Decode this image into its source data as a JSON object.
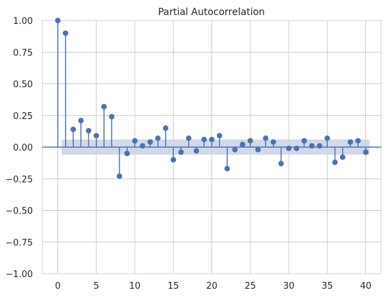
{
  "chart_data": {
    "type": "stem",
    "title": "Partial Autocorrelation",
    "xlabel": "",
    "ylabel": "",
    "xlim": [
      -2,
      42
    ],
    "ylim": [
      -1.0,
      1.0
    ],
    "x_ticks": [
      0,
      5,
      10,
      15,
      20,
      25,
      30,
      35,
      40
    ],
    "y_ticks": [
      1.0,
      0.75,
      0.5,
      0.25,
      0.0,
      -0.25,
      -0.5,
      -0.75,
      -1.0
    ],
    "y_tick_labels": [
      "1.00",
      "0.75",
      "0.50",
      "0.25",
      "0.00",
      "−0.25",
      "−0.50",
      "−0.75",
      "−1.00"
    ],
    "grid": true,
    "confidence_interval": {
      "lower": -0.06,
      "upper": 0.06,
      "x_start": 0.5,
      "x_end": 40.5
    },
    "lags": [
      0,
      1,
      2,
      3,
      4,
      5,
      6,
      7,
      8,
      9,
      10,
      11,
      12,
      13,
      14,
      15,
      16,
      17,
      18,
      19,
      20,
      21,
      22,
      23,
      24,
      25,
      26,
      27,
      28,
      29,
      30,
      31,
      32,
      33,
      34,
      35,
      36,
      37,
      38,
      39,
      40
    ],
    "values": [
      1.0,
      0.9,
      0.14,
      0.21,
      0.13,
      0.09,
      0.32,
      0.24,
      -0.23,
      -0.05,
      0.05,
      0.01,
      0.04,
      0.07,
      0.15,
      -0.1,
      -0.04,
      0.07,
      -0.03,
      0.06,
      0.06,
      0.09,
      -0.17,
      -0.02,
      0.02,
      0.05,
      -0.02,
      0.07,
      0.04,
      -0.13,
      -0.01,
      -0.01,
      0.05,
      0.01,
      0.01,
      0.07,
      -0.12,
      -0.08,
      0.04,
      0.05,
      -0.04
    ],
    "colors": {
      "stem": "#4c72b0",
      "band": "#c8d1e6",
      "zero_line": "#4c72b0",
      "grid": "#cccccc",
      "frame": "#cccccc",
      "text": "#262626"
    }
  }
}
